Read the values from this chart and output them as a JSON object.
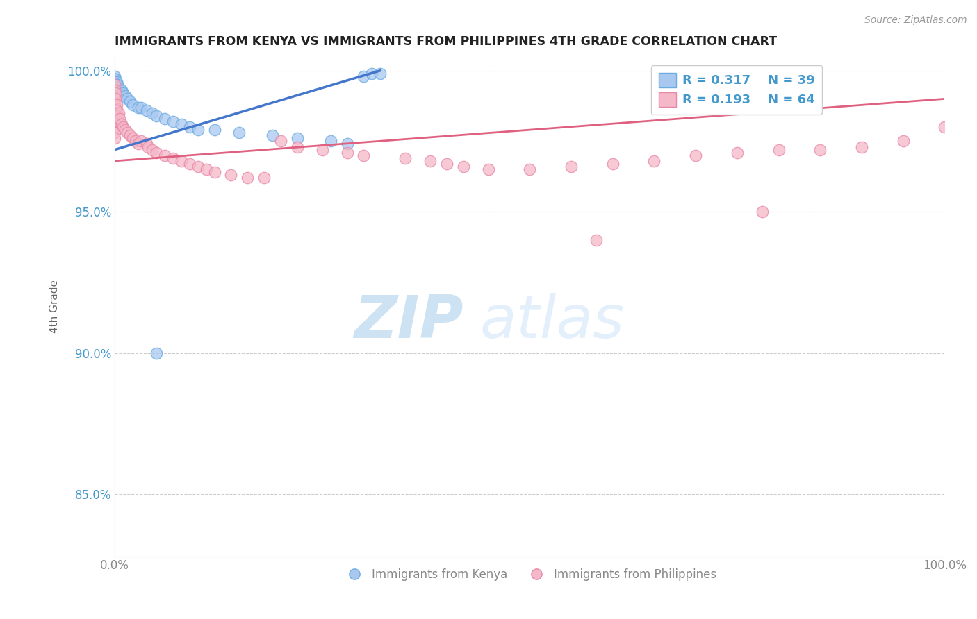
{
  "title": "IMMIGRANTS FROM KENYA VS IMMIGRANTS FROM PHILIPPINES 4TH GRADE CORRELATION CHART",
  "source": "Source: ZipAtlas.com",
  "ylabel": "4th Grade",
  "xlim": [
    0.0,
    1.0
  ],
  "ylim": [
    0.828,
    1.005
  ],
  "xtick_positions": [
    0.0,
    0.25,
    0.5,
    0.75,
    1.0
  ],
  "xtick_labels": [
    "0.0%",
    "",
    "",
    "",
    "100.0%"
  ],
  "ytick_positions": [
    0.85,
    0.9,
    0.95,
    1.0
  ],
  "ytick_labels": [
    "85.0%",
    "90.0%",
    "95.0%",
    "100.0%"
  ],
  "kenya_color": "#a8c8f0",
  "kenya_edge": "#6aabe0",
  "philippines_color": "#f4b8c8",
  "philippines_edge": "#e888a8",
  "trend_kenya_color": "#4477cc",
  "trend_philippines_color": "#e06080",
  "legend_R_kenya": "R = 0.317",
  "legend_N_kenya": "N = 39",
  "legend_R_phil": "R = 0.193",
  "legend_N_phil": "N = 64",
  "watermark_zip": "ZIP",
  "watermark_atlas": "atlas",
  "grid_color": "#cccccc",
  "background_color": "#ffffff",
  "kenya_x": [
    0.0,
    0.0,
    0.0,
    0.0,
    0.0,
    0.001,
    0.001,
    0.002,
    0.002,
    0.003,
    0.004,
    0.005,
    0.006,
    0.008,
    0.01,
    0.012,
    0.015,
    0.018,
    0.022,
    0.028,
    0.032,
    0.038,
    0.045,
    0.05,
    0.06,
    0.07,
    0.08,
    0.09,
    0.1,
    0.12,
    0.15,
    0.19,
    0.22,
    0.26,
    0.28,
    0.3,
    0.31,
    0.32,
    0.05
  ],
  "kenya_y": [
    0.998,
    0.997,
    0.996,
    0.995,
    0.994,
    0.997,
    0.996,
    0.996,
    0.995,
    0.995,
    0.994,
    0.993,
    0.993,
    0.993,
    0.992,
    0.991,
    0.99,
    0.989,
    0.988,
    0.987,
    0.987,
    0.986,
    0.985,
    0.984,
    0.983,
    0.982,
    0.981,
    0.98,
    0.979,
    0.979,
    0.978,
    0.977,
    0.976,
    0.975,
    0.974,
    0.998,
    0.999,
    0.999,
    0.9
  ],
  "philippines_x": [
    0.0,
    0.0,
    0.0,
    0.0,
    0.0,
    0.0,
    0.0,
    0.0,
    0.0,
    0.0,
    0.001,
    0.001,
    0.002,
    0.002,
    0.003,
    0.004,
    0.005,
    0.006,
    0.008,
    0.01,
    0.012,
    0.015,
    0.018,
    0.022,
    0.025,
    0.028,
    0.032,
    0.038,
    0.04,
    0.045,
    0.05,
    0.06,
    0.07,
    0.08,
    0.09,
    0.1,
    0.11,
    0.12,
    0.14,
    0.16,
    0.18,
    0.2,
    0.22,
    0.25,
    0.28,
    0.3,
    0.35,
    0.38,
    0.4,
    0.42,
    0.45,
    0.5,
    0.55,
    0.6,
    0.65,
    0.7,
    0.75,
    0.8,
    0.85,
    0.9,
    0.95,
    0.78,
    0.58,
    1.0
  ],
  "philippines_y": [
    0.995,
    0.993,
    0.99,
    0.988,
    0.986,
    0.984,
    0.982,
    0.98,
    0.978,
    0.976,
    0.992,
    0.99,
    0.988,
    0.986,
    0.984,
    0.982,
    0.985,
    0.983,
    0.981,
    0.98,
    0.979,
    0.978,
    0.977,
    0.976,
    0.975,
    0.974,
    0.975,
    0.974,
    0.973,
    0.972,
    0.971,
    0.97,
    0.969,
    0.968,
    0.967,
    0.966,
    0.965,
    0.964,
    0.963,
    0.962,
    0.962,
    0.975,
    0.973,
    0.972,
    0.971,
    0.97,
    0.969,
    0.968,
    0.967,
    0.966,
    0.965,
    0.965,
    0.966,
    0.967,
    0.968,
    0.97,
    0.971,
    0.972,
    0.972,
    0.973,
    0.975,
    0.95,
    0.94,
    0.98
  ]
}
